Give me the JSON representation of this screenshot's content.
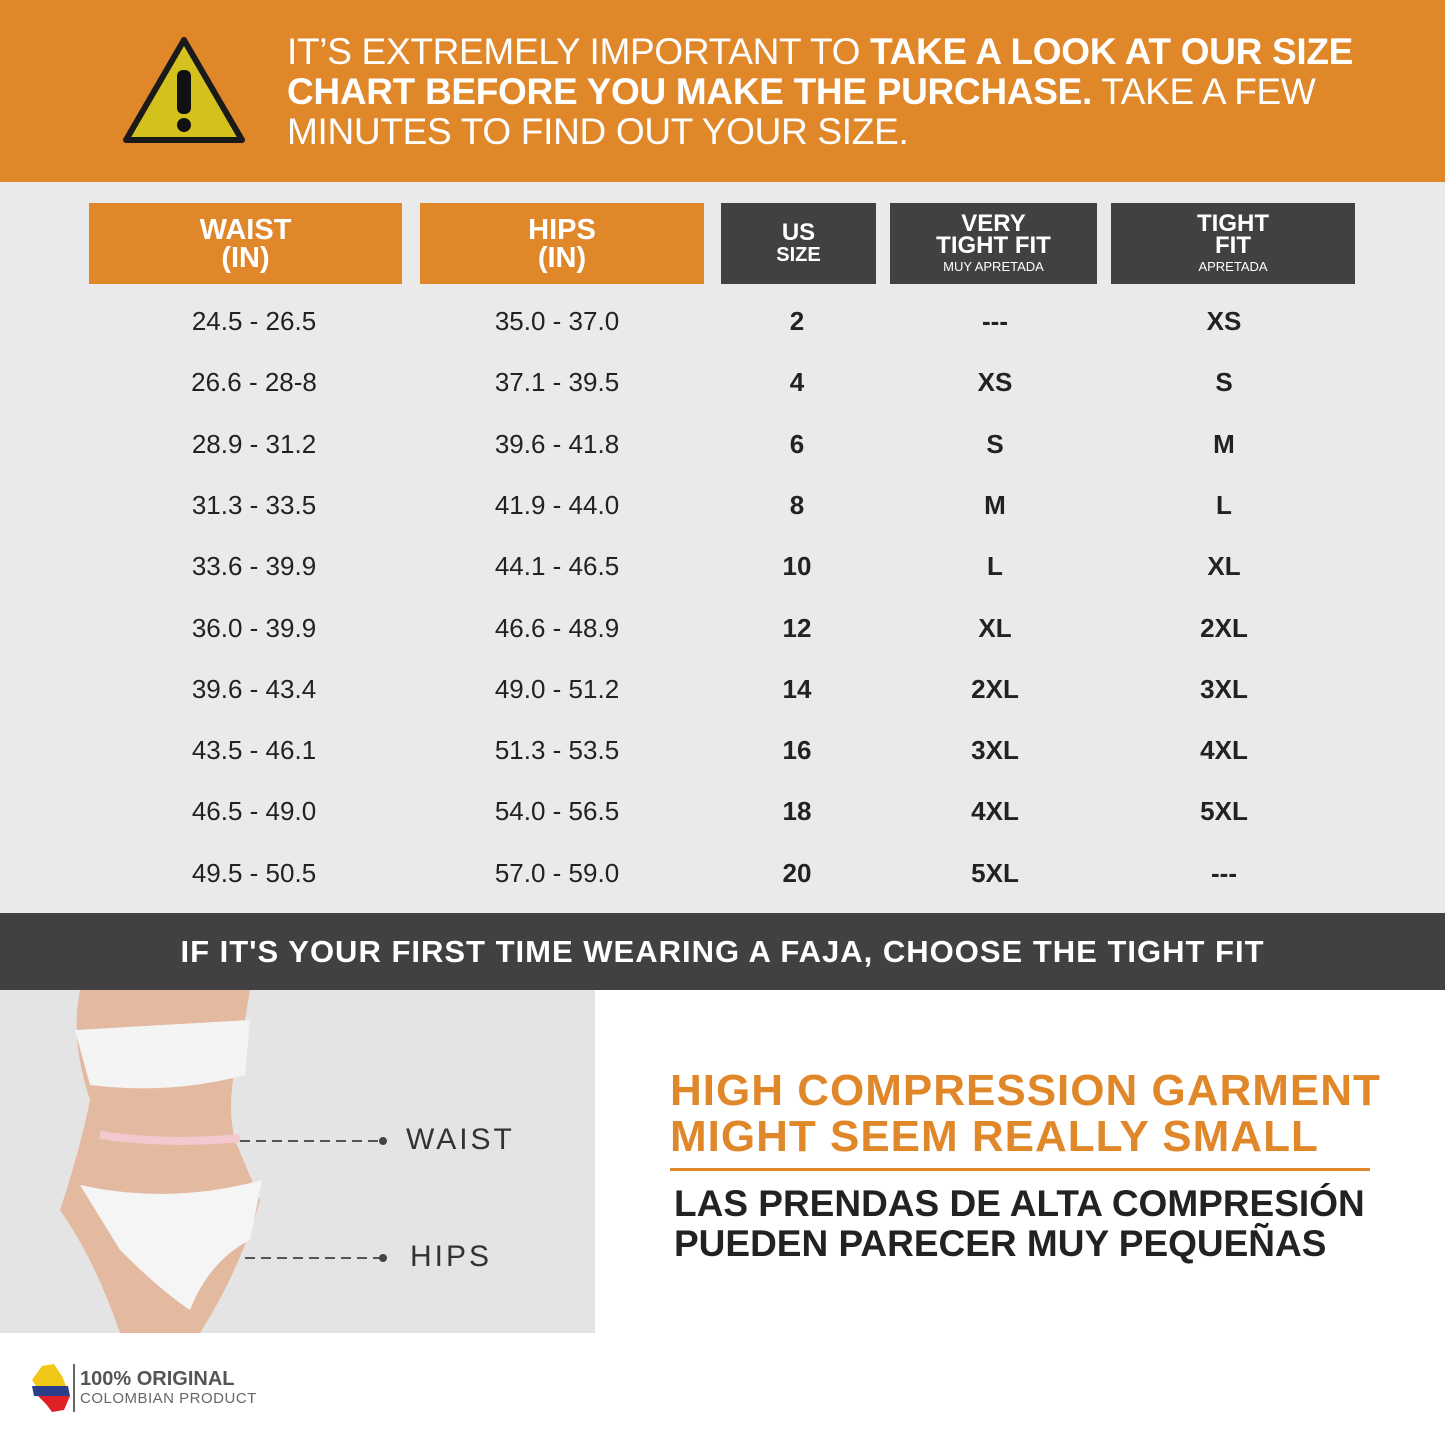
{
  "notice": {
    "part1": "IT’S EXTREMELY IMPORTANT TO ",
    "bold": "TAKE A LOOK AT OUR SIZE CHART BEFORE YOU MAKE THE PURCHASE.",
    "part2": " TAKE A FEW MINUTES TO FIND OUT YOUR SIZE.",
    "icon": "warning-triangle-icon"
  },
  "headers": {
    "waist": [
      "WAIST",
      "(IN)"
    ],
    "hips": [
      "HIPS",
      "(IN)"
    ],
    "us": [
      "US",
      "SIZE"
    ],
    "very_tight": [
      "VERY",
      "TIGHT FIT",
      "MUY APRETADA"
    ],
    "tight": [
      "TIGHT",
      "FIT",
      "APRETADA"
    ]
  },
  "rows": [
    [
      "24.5 - 26.5",
      "35.0 - 37.0",
      "2",
      "---",
      "XS"
    ],
    [
      "26.6 - 28-8",
      "37.1 - 39.5",
      "4",
      "XS",
      "S"
    ],
    [
      "28.9 - 31.2",
      "39.6 - 41.8",
      "6",
      "S",
      "M"
    ],
    [
      "31.3 - 33.5",
      "41.9 - 44.0",
      "8",
      "M",
      "L"
    ],
    [
      "33.6 - 39.9",
      "44.1 - 46.5",
      "10",
      "L",
      "XL"
    ],
    [
      "36.0 - 39.9",
      "46.6 - 48.9",
      "12",
      "XL",
      "2XL"
    ],
    [
      "39.6 - 43.4",
      "49.0 - 51.2",
      "14",
      "2XL",
      "3XL"
    ],
    [
      "43.5 - 46.1",
      "51.3 - 53.5",
      "16",
      "3XL",
      "4XL"
    ],
    [
      "46.5 - 49.0",
      "54.0 - 56.5",
      "18",
      "4XL",
      "5XL"
    ],
    [
      "49.5 - 50.5",
      "57.0 - 59.0",
      "20",
      "5XL",
      "---"
    ]
  ],
  "banner": "IF IT'S YOUR FIRST TIME WEARING A FAJA, CHOOSE THE TIGHT FIT",
  "photo": {
    "waist_label": "WAIST",
    "hips_label": "HIPS"
  },
  "compression": {
    "en1": "HIGH COMPRESSION GARMENT",
    "en2": "MIGHT SEEM REALLY SMALL",
    "es1": "LAS PRENDAS DE ALTA COMPRESIÓN",
    "es2": "PUEDEN PARECER MUY PEQUEÑAS"
  },
  "badge": {
    "line1": "100% ORIGINAL",
    "line2": "COLOMBIAN PRODUCT"
  },
  "colors": {
    "orange": "#E0872A",
    "dark": "#414042"
  }
}
